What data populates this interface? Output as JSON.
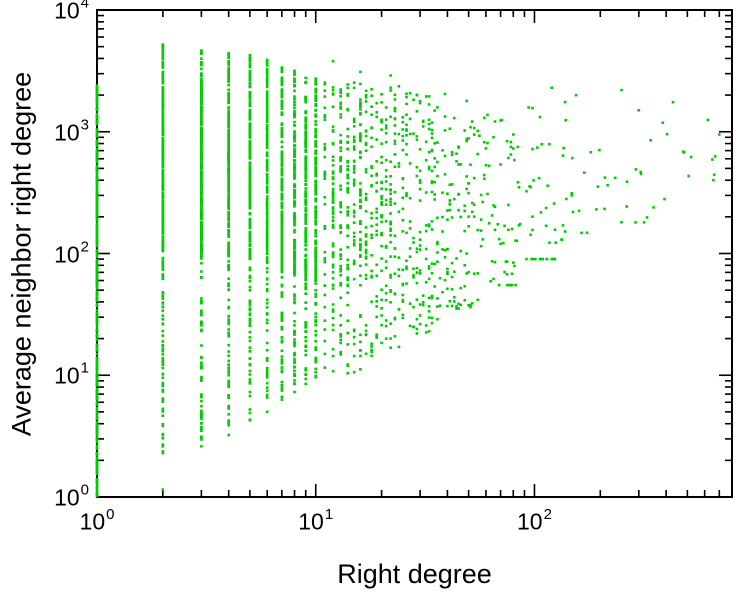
{
  "page": {
    "background": "#ffffff"
  },
  "chart_data": {
    "type": "scatter",
    "title": "",
    "xlabel": "Right degree",
    "ylabel": "Average neighbor right degree",
    "x_scale": "log",
    "y_scale": "log",
    "x_range": [
      1,
      800
    ],
    "y_range": [
      1,
      10000
    ],
    "x_tick_exponents": [
      0,
      1,
      2
    ],
    "y_tick_exponents": [
      0,
      1,
      2,
      3,
      4
    ],
    "tick_base": "10",
    "grid": false,
    "legend": "none",
    "marker": "square",
    "point_color": "#00cc00",
    "point_size": 2.6,
    "axis_color": "#000000",
    "seed": 7,
    "columns": [
      {
        "x": 1,
        "count": 420,
        "ymin": 1.0,
        "ymax": 2400,
        "flat": true
      },
      {
        "x": 2,
        "count": 380,
        "ymin": 2.2,
        "ymax": 5200
      },
      {
        "x": 3,
        "count": 340,
        "ymin": 2.6,
        "ymax": 4900
      },
      {
        "x": 4,
        "count": 300,
        "ymin": 3.2,
        "ymax": 4600
      },
      {
        "x": 5,
        "count": 270,
        "ymin": 4.0,
        "ymax": 4400
      },
      {
        "x": 6,
        "count": 240,
        "ymin": 5.0,
        "ymax": 4100
      },
      {
        "x": 7,
        "count": 210,
        "ymin": 6.0,
        "ymax": 3500
      },
      {
        "x": 8,
        "count": 185,
        "ymin": 7.0,
        "ymax": 3200
      },
      {
        "x": 9,
        "count": 165,
        "ymin": 8.0,
        "ymax": 3000
      },
      {
        "x": 10,
        "count": 150,
        "ymin": 9.0,
        "ymax": 2800
      }
    ],
    "bands": [
      {
        "xmin": 11,
        "xmax": 16,
        "count": 300,
        "ymin": 10,
        "ymax": 2700
      },
      {
        "xmin": 16,
        "xmax": 24,
        "count": 240,
        "ymin": 14,
        "ymax": 2500
      },
      {
        "xmin": 24,
        "xmax": 36,
        "count": 170,
        "ymin": 22,
        "ymax": 2300
      },
      {
        "xmin": 36,
        "xmax": 55,
        "count": 110,
        "ymin": 35,
        "ymax": 2100
      },
      {
        "xmin": 55,
        "xmax": 85,
        "count": 65,
        "ymin": 55,
        "ymax": 2000
      },
      {
        "xmin": 85,
        "xmax": 130,
        "count": 38,
        "ymin": 90,
        "ymax": 1900
      },
      {
        "xmin": 130,
        "xmax": 210,
        "count": 22,
        "ymin": 130,
        "ymax": 1800
      },
      {
        "xmin": 210,
        "xmax": 360,
        "count": 12,
        "ymin": 180,
        "ymax": 1700
      },
      {
        "xmin": 360,
        "xmax": 560,
        "count": 6,
        "ymin": 280,
        "ymax": 1500
      },
      {
        "xmin": 560,
        "xmax": 760,
        "count": 4,
        "ymin": 400,
        "ymax": 1400
      }
    ],
    "outliers": [
      [
        2,
        1.15
      ],
      [
        12,
        3800
      ],
      [
        16,
        3100
      ],
      [
        22,
        2900
      ],
      [
        120,
        2300
      ],
      [
        155,
        2000
      ],
      [
        210,
        420
      ],
      [
        250,
        2200
      ],
      [
        300,
        1500
      ],
      [
        340,
        850
      ],
      [
        430,
        1750
      ],
      [
        520,
        620
      ],
      [
        620,
        1250
      ],
      [
        700,
        950
      ]
    ]
  }
}
